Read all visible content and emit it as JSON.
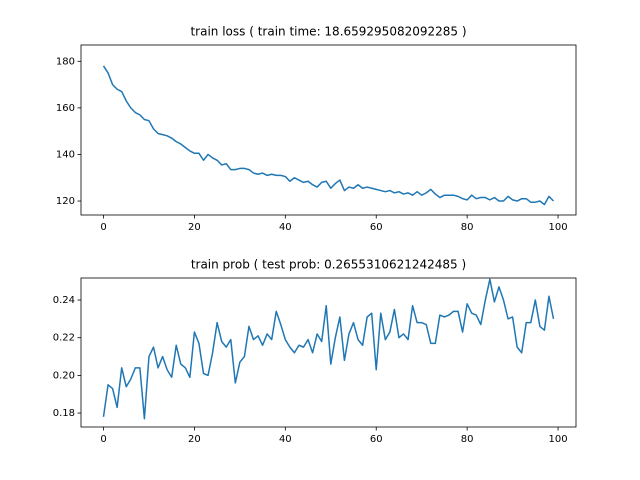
{
  "chart_data": [
    {
      "type": "line",
      "title": "train loss ( train time: 18.659295082092285 )",
      "x": [
        0,
        1,
        2,
        3,
        4,
        5,
        6,
        7,
        8,
        9,
        10,
        11,
        12,
        13,
        14,
        15,
        16,
        17,
        18,
        19,
        20,
        21,
        22,
        23,
        24,
        25,
        26,
        27,
        28,
        29,
        30,
        31,
        32,
        33,
        34,
        35,
        36,
        37,
        38,
        39,
        40,
        41,
        42,
        43,
        44,
        45,
        46,
        47,
        48,
        49,
        50,
        51,
        52,
        53,
        54,
        55,
        56,
        57,
        58,
        59,
        60,
        61,
        62,
        63,
        64,
        65,
        66,
        67,
        68,
        69,
        70,
        71,
        72,
        73,
        74,
        75,
        76,
        77,
        78,
        79,
        80,
        81,
        82,
        83,
        84,
        85,
        86,
        87,
        88,
        89,
        90,
        91,
        92,
        93,
        94,
        95,
        96,
        97,
        98,
        99
      ],
      "values": [
        178,
        175,
        170,
        168,
        167,
        163,
        160,
        158,
        157,
        155,
        154.5,
        151,
        149,
        148.5,
        148,
        147,
        145.5,
        144.5,
        143,
        141.5,
        140.5,
        140.5,
        137.5,
        140,
        138.5,
        137.5,
        135.5,
        136,
        133.5,
        133.5,
        134,
        134,
        133.5,
        132,
        131.5,
        132,
        131,
        131.5,
        131,
        131,
        130.5,
        128.5,
        130,
        129,
        128,
        128.5,
        127,
        126,
        128,
        128.5,
        125.5,
        127.5,
        129,
        124.5,
        126,
        125.5,
        127,
        125.5,
        126,
        125.5,
        125,
        124.5,
        124,
        124.5,
        123.5,
        124,
        123,
        123.5,
        122.5,
        124,
        122.5,
        123.5,
        125,
        123,
        121.5,
        122.5,
        122.5,
        122.5,
        122,
        121,
        120.5,
        122.5,
        121,
        121.5,
        121.5,
        120.5,
        121.5,
        120,
        120,
        122,
        120.5,
        120,
        121,
        121,
        119.5,
        119.5,
        120,
        118.5,
        122,
        120
      ],
      "color": "#1f77b4",
      "xlim": [
        -4.95,
        103.95
      ],
      "ylim": [
        114,
        187
      ],
      "xticks": [
        0,
        20,
        40,
        60,
        80,
        100
      ],
      "yticks": [
        120,
        140,
        160,
        180
      ]
    },
    {
      "type": "line",
      "title": "train prob ( test prob: 0.2655310621242485 )",
      "x": [
        0,
        1,
        2,
        3,
        4,
        5,
        6,
        7,
        8,
        9,
        10,
        11,
        12,
        13,
        14,
        15,
        16,
        17,
        18,
        19,
        20,
        21,
        22,
        23,
        24,
        25,
        26,
        27,
        28,
        29,
        30,
        31,
        32,
        33,
        34,
        35,
        36,
        37,
        38,
        39,
        40,
        41,
        42,
        43,
        44,
        45,
        46,
        47,
        48,
        49,
        50,
        51,
        52,
        53,
        54,
        55,
        56,
        57,
        58,
        59,
        60,
        61,
        62,
        63,
        64,
        65,
        66,
        67,
        68,
        69,
        70,
        71,
        72,
        73,
        74,
        75,
        76,
        77,
        78,
        79,
        80,
        81,
        82,
        83,
        84,
        85,
        86,
        87,
        88,
        89,
        90,
        91,
        92,
        93,
        94,
        95,
        96,
        97,
        98,
        99
      ],
      "values": [
        0.178,
        0.195,
        0.193,
        0.183,
        0.204,
        0.194,
        0.198,
        0.204,
        0.204,
        0.177,
        0.21,
        0.215,
        0.204,
        0.21,
        0.203,
        0.199,
        0.216,
        0.206,
        0.204,
        0.199,
        0.223,
        0.217,
        0.201,
        0.2,
        0.212,
        0.228,
        0.218,
        0.215,
        0.219,
        0.196,
        0.207,
        0.21,
        0.226,
        0.219,
        0.221,
        0.216,
        0.222,
        0.219,
        0.234,
        0.227,
        0.219,
        0.215,
        0.212,
        0.216,
        0.215,
        0.219,
        0.212,
        0.222,
        0.218,
        0.237,
        0.206,
        0.22,
        0.231,
        0.208,
        0.222,
        0.228,
        0.219,
        0.216,
        0.231,
        0.233,
        0.203,
        0.233,
        0.219,
        0.223,
        0.235,
        0.22,
        0.222,
        0.219,
        0.237,
        0.228,
        0.228,
        0.227,
        0.217,
        0.217,
        0.232,
        0.231,
        0.232,
        0.234,
        0.234,
        0.223,
        0.238,
        0.233,
        0.232,
        0.227,
        0.24,
        0.251,
        0.239,
        0.247,
        0.24,
        0.23,
        0.231,
        0.215,
        0.212,
        0.228,
        0.228,
        0.24,
        0.226,
        0.224,
        0.242,
        0.23
      ],
      "color": "#1f77b4",
      "xlim": [
        -4.95,
        103.95
      ],
      "ylim": [
        0.1726,
        0.2517
      ],
      "xticks": [
        0,
        20,
        40,
        60,
        80,
        100
      ],
      "yticks": [
        0.18,
        {
          "value": 0.2,
          "label": "0.20"
        },
        0.22,
        0.24
      ]
    }
  ]
}
